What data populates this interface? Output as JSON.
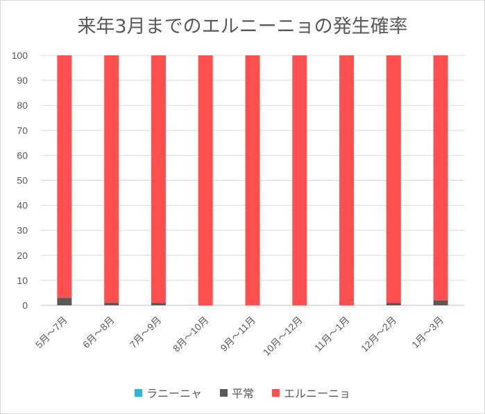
{
  "chart_data": {
    "type": "bar",
    "stacked": true,
    "title": "来年3月までのエルニーニョの発生確率",
    "xlabel": "",
    "ylabel": "",
    "ylim": [
      0,
      100
    ],
    "yticks": [
      0,
      10,
      20,
      30,
      40,
      50,
      60,
      70,
      80,
      90,
      100
    ],
    "grid": true,
    "legend_position": "bottom",
    "categories": [
      "5月～7月",
      "6月～8月",
      "7月～9月",
      "8月～10月",
      "9月～11月",
      "10月～12月",
      "11月～1月",
      "12月～2月",
      "1月～3月"
    ],
    "series": [
      {
        "name": "ラニーニャ",
        "color": "#2eb5cf",
        "values": [
          0,
          0,
          0,
          0,
          0,
          0,
          0,
          0,
          0
        ]
      },
      {
        "name": "平常",
        "color": "#595959",
        "values": [
          3,
          1,
          1,
          0,
          0,
          0,
          0,
          1,
          2
        ]
      },
      {
        "name": "エルニーニョ",
        "color": "#ff4f4f",
        "values": [
          97,
          99,
          99,
          100,
          100,
          100,
          100,
          99,
          98
        ]
      }
    ]
  }
}
